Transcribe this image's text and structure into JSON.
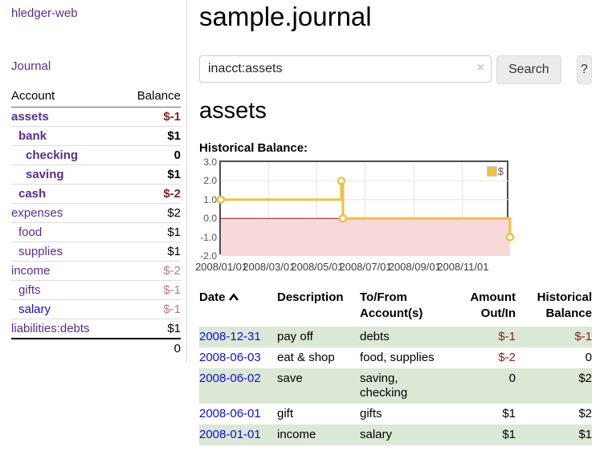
{
  "sidebar": {
    "brand": "hledger-web",
    "journal_label": "Journal",
    "account_header": "Account",
    "balance_header": "Balance",
    "accounts": [
      {
        "name": "assets",
        "indent": 0,
        "bold": true,
        "balance": "$-1",
        "balance_style": "neg-strong"
      },
      {
        "name": "bank",
        "indent": 1,
        "bold": true,
        "balance": "$1",
        "balance_style": "pos"
      },
      {
        "name": "checking",
        "indent": 2,
        "bold": true,
        "balance": "0",
        "balance_style": "pos"
      },
      {
        "name": "saving",
        "indent": 2,
        "bold": true,
        "balance": "$1",
        "balance_style": "pos"
      },
      {
        "name": "cash",
        "indent": 1,
        "bold": true,
        "balance": "$-2",
        "balance_style": "neg-strong"
      },
      {
        "name": "expenses",
        "indent": 0,
        "bold": false,
        "balance": "$2",
        "balance_style": "pos"
      },
      {
        "name": "food",
        "indent": 1,
        "bold": false,
        "balance": "$1",
        "balance_style": "pos"
      },
      {
        "name": "supplies",
        "indent": 1,
        "bold": false,
        "balance": "$1",
        "balance_style": "pos"
      },
      {
        "name": "income",
        "indent": 0,
        "bold": false,
        "balance": "$-2",
        "balance_style": "neg-muted"
      },
      {
        "name": "gifts",
        "indent": 1,
        "bold": false,
        "balance": "$-1",
        "balance_style": "neg-muted"
      },
      {
        "name": "salary",
        "indent": 1,
        "bold": false,
        "blue": true,
        "balance": "$-1",
        "balance_style": "neg-muted"
      },
      {
        "name": "liabilities:debts",
        "indent": 0,
        "bold": false,
        "balance": "$1",
        "balance_style": "pos"
      }
    ],
    "total": "0"
  },
  "header": {
    "title": "sample.journal"
  },
  "search": {
    "value": "inacct:assets",
    "clear_icon": "×",
    "button_label": "Search",
    "help_label": "?"
  },
  "main": {
    "account_heading": "assets"
  },
  "chart_data": {
    "type": "line",
    "step": true,
    "title": "Historical Balance:",
    "legend": "$",
    "legend_position": "top-right",
    "grid": true,
    "ylim": [
      -2,
      3
    ],
    "y_ticks": [
      "3.0",
      "2.0",
      "1.0",
      "0.0",
      "-1.0",
      "-2.0"
    ],
    "x_ticks": [
      "2008/01/01",
      "2008/03/01",
      "2008/05/01",
      "2008/07/01",
      "2008/09/01",
      "2008/11/01"
    ],
    "series": [
      {
        "name": "$",
        "color": "#edc240",
        "points": [
          {
            "x": "2008-01-01",
            "y": 1
          },
          {
            "x": "2008-06-01",
            "y": 2
          },
          {
            "x": "2008-06-03",
            "y": 0
          },
          {
            "x": "2008-12-31",
            "y": -1
          }
        ]
      }
    ],
    "negative_fill": "#f8d8d8",
    "zero_line_color": "#8b1a1a",
    "grid_color": "#e3e3e3"
  },
  "register": {
    "headers": [
      "Date",
      "Description",
      "To/From\nAccount(s)",
      "Amount\nOut/In",
      "Historical\nBalance"
    ],
    "sort_icon": "caret-up",
    "rows": [
      {
        "date": "2008-12-31",
        "description": "pay off",
        "accounts": "debts",
        "amount": "$-1",
        "amount_neg": true,
        "balance": "$-1",
        "balance_neg": true
      },
      {
        "date": "2008-06-03",
        "description": "eat & shop",
        "accounts": "food, supplies",
        "amount": "$-2",
        "amount_neg": true,
        "balance": "0",
        "balance_neg": false
      },
      {
        "date": "2008-06-02",
        "description": "save",
        "accounts": "saving, checking",
        "amount": "0",
        "amount_neg": false,
        "balance": "$2",
        "balance_neg": false
      },
      {
        "date": "2008-06-01",
        "description": "gift",
        "accounts": "gifts",
        "amount": "$1",
        "amount_neg": false,
        "balance": "$2",
        "balance_neg": false
      },
      {
        "date": "2008-01-01",
        "description": "income",
        "accounts": "salary",
        "amount": "$1",
        "amount_neg": false,
        "balance": "$1",
        "balance_neg": false
      }
    ]
  }
}
